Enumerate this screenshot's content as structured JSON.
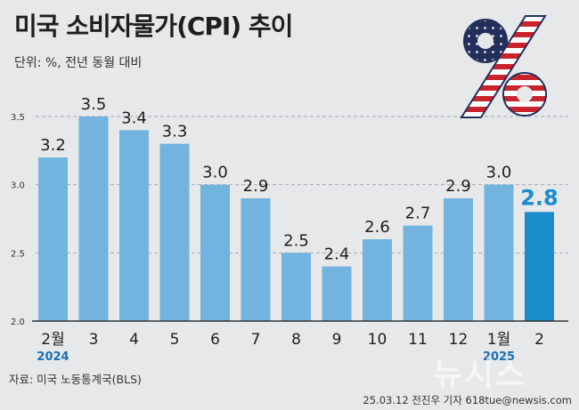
{
  "header": {
    "title": "미국 소비자물가(CPI) 추이",
    "unit": "단위: %, 전년 동월 대비"
  },
  "footer": {
    "source": "자료: 미국 노동통계국(BLS)",
    "credit": "25.03.12 전진우 기자 618tue@newsis.com",
    "logo": "뉴시스"
  },
  "decor": {
    "percent_icon": "us-flag-percent-icon",
    "logo_text": "뉴시스"
  },
  "chart_data": {
    "type": "bar",
    "categories": [
      "2월",
      "3",
      "4",
      "5",
      "6",
      "7",
      "8",
      "9",
      "10",
      "11",
      "12",
      "1월",
      "2"
    ],
    "year_labels": [
      {
        "index": 0,
        "label": "2024"
      },
      {
        "index": 11,
        "label": "2025"
      }
    ],
    "values": [
      3.2,
      3.5,
      3.4,
      3.3,
      3.0,
      2.9,
      2.5,
      2.4,
      2.6,
      2.7,
      2.9,
      3.0,
      2.8
    ],
    "data_labels": [
      "3.2",
      "3.5",
      "3.4",
      "3.3",
      "3.0",
      "2.9",
      "2.5",
      "2.4",
      "2.6",
      "2.7",
      "2.9",
      "3.0",
      "2.8"
    ],
    "y_ticks": [
      "2.0",
      "2.5",
      "3.0",
      "3.5"
    ],
    "ylim": [
      2.0,
      3.65
    ],
    "highlight_index": 12,
    "grid": true,
    "colors": {
      "bar": "#72b4df",
      "highlight_bar": "#1b8ccc",
      "highlight_label": "#1b8ccc",
      "year_label": "#1b6fb5",
      "grid": "#a6aab0",
      "axis": "#333333"
    }
  }
}
